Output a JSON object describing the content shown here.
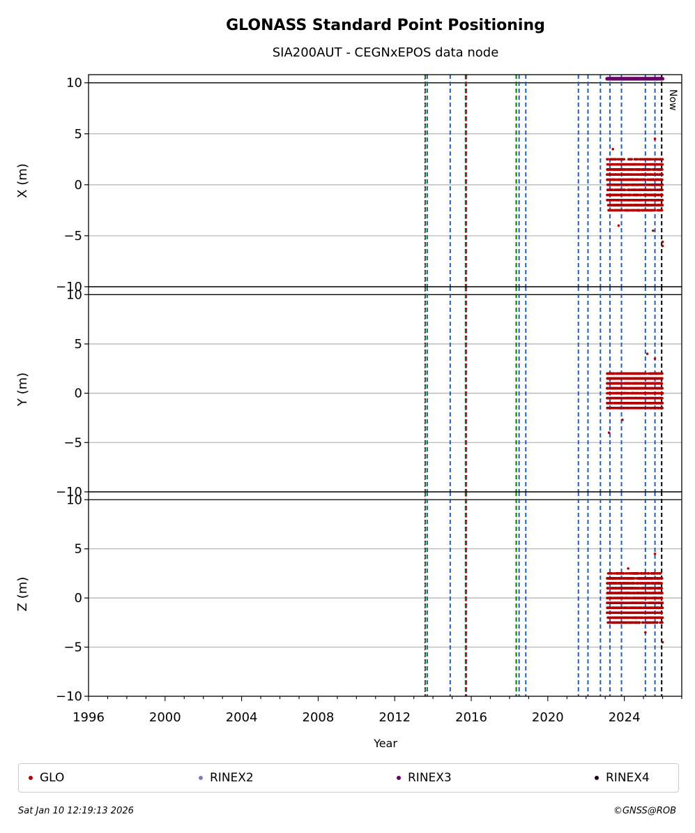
{
  "chart_data": {
    "type": "scatter",
    "title": "GLONASS Standard Point Positioning",
    "subtitle": "SIA200AUT - CEGNxEPOS data node",
    "xlabel": "Year",
    "xlim": [
      1996,
      2027
    ],
    "xticks": [
      "1996",
      "2000",
      "2004",
      "2008",
      "2012",
      "2016",
      "2020",
      "2024"
    ],
    "panels": [
      {
        "ylabel": "X (m)",
        "ylim": [
          -10,
          10.8
        ],
        "yticks": [
          "−10",
          "−5",
          "0",
          "5",
          "10"
        ],
        "spread": [
          -2.5,
          2.5
        ],
        "outliers": [
          [
            2026.0,
            -5.6
          ],
          [
            2026.0,
            -6.0
          ],
          [
            2025.6,
            4.5
          ],
          [
            2025.5,
            -4.5
          ],
          [
            2023.7,
            -4.0
          ],
          [
            2023.4,
            3.5
          ]
        ]
      },
      {
        "ylabel": "Y (m)",
        "ylim": [
          -10,
          10.8
        ],
        "yticks": [
          "−10",
          "−5",
          "0",
          "5",
          "10"
        ],
        "spread": [
          -1.5,
          2.0
        ],
        "outliers": [
          [
            2023.2,
            -4.0
          ],
          [
            2023.9,
            -2.7
          ],
          [
            2025.2,
            4.0
          ],
          [
            2025.6,
            3.5
          ]
        ]
      },
      {
        "ylabel": "Z (m)",
        "ylim": [
          -10,
          10.8
        ],
        "yticks": [
          "−10",
          "−5",
          "0",
          "5",
          "10"
        ],
        "spread": [
          -2.5,
          2.5
        ],
        "outliers": [
          [
            2026.0,
            -4.5
          ],
          [
            2025.6,
            4.5
          ],
          [
            2025.1,
            -3.5
          ],
          [
            2024.2,
            3.0
          ]
        ]
      }
    ],
    "data_range": [
      2023.1,
      2026.0
    ],
    "rinex3_range": [
      2023.1,
      2026.0
    ],
    "rinex3_level": 10.4,
    "blue_events": [
      2013.7,
      2014.9,
      2015.75,
      2018.5,
      2018.85,
      2021.6,
      2022.1,
      2022.75,
      2023.25,
      2023.85,
      2025.1,
      2025.6
    ],
    "green_events": [
      2013.6,
      2015.7,
      2018.35
    ],
    "red_events": [
      2013.58,
      2015.72
    ],
    "now": 2025.95,
    "now_label": "Now",
    "colors": {
      "glo": "#b30000",
      "rinex2": "#7b7bbf",
      "rinex3": "#6a0066",
      "rinex4": "#1a0018",
      "blue": "#1f5fbf",
      "green": "#007a00",
      "grid": "#b0b0b0"
    }
  },
  "legend": [
    {
      "label": "GLO",
      "color": "#b30000"
    },
    {
      "label": "RINEX2",
      "color": "#7b7bbf"
    },
    {
      "label": "RINEX3",
      "color": "#6a0066"
    },
    {
      "label": "RINEX4",
      "color": "#1a0018"
    }
  ],
  "footer": {
    "timestamp": "Sat Jan 10 12:19:13 2026",
    "credit": "©GNSS@ROB"
  }
}
